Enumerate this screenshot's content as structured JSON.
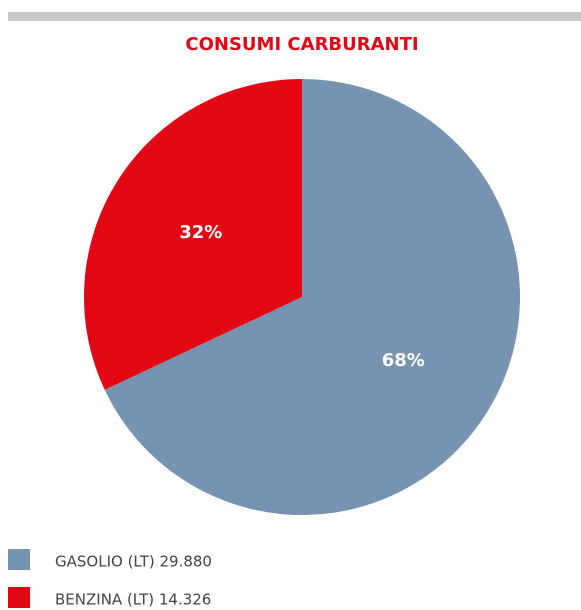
{
  "chart_data": {
    "type": "pie",
    "title": "CONSUMI CARBURANTI",
    "categories": [
      "GASOLIO (LT) 29.880",
      "BENZINA (LT) 14.326"
    ],
    "values": [
      68,
      32
    ],
    "value_labels": [
      "68%",
      "32%"
    ],
    "colors": [
      "#7694b1",
      "#e30613"
    ]
  }
}
